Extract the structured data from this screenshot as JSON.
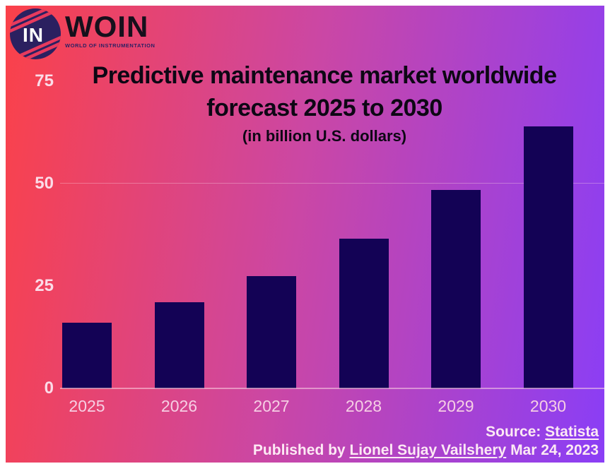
{
  "logo": {
    "monogram": "IN",
    "brand": "WOIN",
    "tagline": "WORLD OF INSTRUMENTATION"
  },
  "title": "Predictive maintenance market worldwide forecast 2025 to 2030",
  "subtitle": "(in billion U.S. dollars)",
  "source": {
    "prefix": "Source:",
    "link": "Statista"
  },
  "published": {
    "prefix": "Published by",
    "link": "Lionel Sujay Vailshery",
    "date": "Mar 24, 2023"
  },
  "colors": {
    "gradient_left": "#fb4149",
    "gradient_mid": "#cb47a4",
    "gradient_right": "#8a3ef6",
    "bar": "#130255",
    "axis_text": "#fbdce8",
    "title_text": "#0d0714",
    "logo_circle": "#2b2060",
    "logo_stripe": "#e73a5e"
  },
  "chart_data": {
    "type": "bar",
    "title": "Predictive maintenance market worldwide forecast 2025 to 2030",
    "subtitle": "(in billion U.S. dollars)",
    "unit": "billion U.S. dollars",
    "categories": [
      "2025",
      "2026",
      "2027",
      "2028",
      "2029",
      "2030"
    ],
    "values": [
      16,
      21,
      27.5,
      36.5,
      48.5,
      64
    ],
    "xlabel": "",
    "ylabel": "",
    "ylim": [
      0,
      75
    ],
    "yticks": [
      0,
      25,
      50,
      75
    ],
    "gridlines": [
      50
    ],
    "grid": "horizontal-faint",
    "legend": false,
    "bar_color": "#130255"
  }
}
